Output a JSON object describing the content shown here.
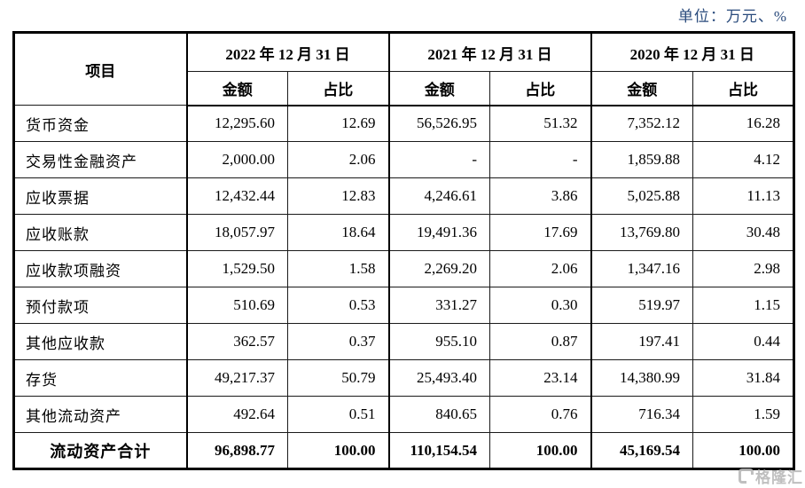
{
  "unit_label": "单位：万元、%",
  "table": {
    "item_header": "项目",
    "col_groups": [
      {
        "date": "2022 年 12 月 31 日",
        "amount_label": "金额",
        "ratio_label": "占比"
      },
      {
        "date": "2021 年 12 月 31 日",
        "amount_label": "金额",
        "ratio_label": "占比"
      },
      {
        "date": "2020 年 12 月 31 日",
        "amount_label": "金额",
        "ratio_label": "占比"
      }
    ],
    "rows": [
      {
        "item": "货币资金",
        "values": [
          "12,295.60",
          "12.69",
          "56,526.95",
          "51.32",
          "7,352.12",
          "16.28"
        ]
      },
      {
        "item": "交易性金融资产",
        "values": [
          "2,000.00",
          "2.06",
          "-",
          "-",
          "1,859.88",
          "4.12"
        ]
      },
      {
        "item": "应收票据",
        "values": [
          "12,432.44",
          "12.83",
          "4,246.61",
          "3.86",
          "5,025.88",
          "11.13"
        ]
      },
      {
        "item": "应收账款",
        "values": [
          "18,057.97",
          "18.64",
          "19,491.36",
          "17.69",
          "13,769.80",
          "30.48"
        ]
      },
      {
        "item": "应收款项融资",
        "values": [
          "1,529.50",
          "1.58",
          "2,269.20",
          "2.06",
          "1,347.16",
          "2.98"
        ]
      },
      {
        "item": "预付款项",
        "values": [
          "510.69",
          "0.53",
          "331.27",
          "0.30",
          "519.97",
          "1.15"
        ]
      },
      {
        "item": "其他应收款",
        "values": [
          "362.57",
          "0.37",
          "955.10",
          "0.87",
          "197.41",
          "0.44"
        ]
      },
      {
        "item": "存货",
        "values": [
          "49,217.37",
          "50.79",
          "25,493.40",
          "23.14",
          "14,380.99",
          "31.84"
        ]
      },
      {
        "item": "其他流动资产",
        "values": [
          "492.64",
          "0.51",
          "840.65",
          "0.76",
          "716.34",
          "1.59"
        ]
      }
    ],
    "total_row": {
      "item": "流动资产合计",
      "values": [
        "96,898.77",
        "100.00",
        "110,154.54",
        "100.00",
        "45,169.54",
        "100.00"
      ]
    }
  },
  "watermark": "格隆汇",
  "colors": {
    "unit_text": "#2a4b7c",
    "text": "#000000",
    "border": "#000000",
    "watermark": "#b9b9b9"
  }
}
